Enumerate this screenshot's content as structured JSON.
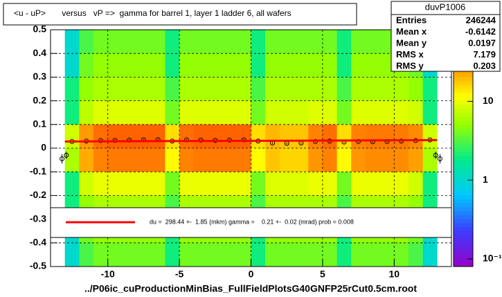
{
  "chart_data": {
    "type": "heatmap",
    "title": "<u - uP>       versus   vP =>  gamma for barrel 1, layer 1 ladder 6, all wafers",
    "footer": "../P06ic_cuProductionMinBias_FullFieldPlotsG40GNFP25rCut0.5cm.root",
    "stats": {
      "name": "duvP1006",
      "rows": [
        {
          "label": "Entries",
          "value": 246244
        },
        {
          "label": "Mean x",
          "value": -0.6142
        },
        {
          "label": "Mean y",
          "value": 0.0197
        },
        {
          "label": "RMS x",
          "value": 7.179
        },
        {
          "label": "RMS y",
          "value": 0.203
        }
      ]
    },
    "fit_legend": "du =  298.44 +-  1.85 (mkm) gamma =    0.21 +-  0.02 (mrad) prob = 0.008",
    "xlim": [
      -14,
      14
    ],
    "ylim": [
      -0.5,
      0.5
    ],
    "xticks": [
      -10,
      -5,
      0,
      5,
      10
    ],
    "yticks": [
      -0.5,
      -0.4,
      -0.3,
      -0.2,
      -0.1,
      0,
      0.1,
      0.2,
      0.3,
      0.4,
      0.5
    ],
    "zlim": [
      0.08,
      81
    ],
    "zscale": "log",
    "zticks": [
      {
        "value": 0.1,
        "label": "10⁻¹"
      },
      1,
      10
    ],
    "grid": true,
    "x_bins": [
      -13,
      -12,
      -11,
      -10,
      -9,
      -8,
      -7,
      -6,
      -5,
      -4,
      -3,
      -2,
      -1,
      0,
      1,
      2,
      3,
      4,
      5,
      6,
      7,
      8,
      9,
      10,
      11,
      12,
      13
    ],
    "y_bins": [
      0.5,
      0.4,
      0.3,
      0.2,
      0.1,
      0,
      -0.1,
      -0.2,
      -0.3,
      -0.4,
      -0.5
    ],
    "z": [
      [
        1,
        3,
        4,
        4,
        4,
        4,
        4,
        2,
        4,
        4,
        4,
        4,
        4,
        2,
        4,
        4,
        4,
        4,
        4,
        2,
        4,
        4,
        4,
        4,
        3,
        1
      ],
      [
        1,
        4,
        5,
        5,
        5,
        5,
        5,
        2,
        5,
        5,
        5,
        5,
        5,
        2,
        5,
        5,
        5,
        5,
        5,
        2,
        5,
        5,
        5,
        5,
        4,
        1
      ],
      [
        2,
        5,
        6,
        6,
        6,
        6,
        6,
        3,
        6,
        6,
        6,
        6,
        6,
        3,
        6,
        6,
        6,
        6,
        6,
        3,
        6,
        6,
        6,
        6,
        5,
        2
      ],
      [
        2,
        7,
        9,
        9,
        9,
        9,
        9,
        4,
        9,
        9,
        9,
        9,
        9,
        4,
        8,
        8,
        8,
        9,
        9,
        4,
        9,
        9,
        9,
        9,
        8,
        2
      ],
      [
        8,
        25,
        35,
        38,
        38,
        38,
        38,
        15,
        35,
        38,
        38,
        38,
        38,
        15,
        20,
        18,
        18,
        30,
        35,
        15,
        30,
        32,
        32,
        32,
        28,
        8
      ],
      [
        6,
        22,
        30,
        32,
        32,
        32,
        32,
        12,
        30,
        32,
        32,
        32,
        32,
        12,
        18,
        16,
        16,
        26,
        30,
        12,
        26,
        28,
        28,
        28,
        24,
        6
      ],
      [
        2,
        8,
        10,
        10,
        10,
        10,
        10,
        4,
        10,
        10,
        10,
        10,
        10,
        4,
        9,
        9,
        9,
        10,
        10,
        4,
        10,
        10,
        10,
        10,
        8,
        2
      ],
      [
        2,
        5,
        6,
        6,
        6,
        6,
        6,
        3,
        6,
        6,
        6,
        6,
        6,
        3,
        6,
        6,
        6,
        6,
        6,
        3,
        6,
        6,
        6,
        6,
        5,
        2
      ],
      [
        1,
        4,
        5,
        5,
        5,
        5,
        5,
        2,
        5,
        5,
        5,
        5,
        5,
        2,
        5,
        5,
        5,
        5,
        5,
        2,
        5,
        5,
        5,
        5,
        4,
        1
      ],
      [
        1,
        3,
        4,
        4,
        4,
        4,
        4,
        2,
        4,
        4,
        4,
        4,
        4,
        2,
        4,
        4,
        4,
        4,
        4,
        2,
        4,
        4,
        4,
        4,
        3,
        1
      ]
    ],
    "profile": {
      "x": [
        -13.2,
        -12.9,
        -12.5,
        -11.5,
        -10.5,
        -9.5,
        -8.5,
        -7.5,
        -6.5,
        -5.5,
        -4.5,
        -3.5,
        -2.5,
        -1.5,
        -0.5,
        0.5,
        1.5,
        2.5,
        3.5,
        4.5,
        5.5,
        6.5,
        7.5,
        8.5,
        9.5,
        10.5,
        11.5,
        12.5,
        12.9,
        13.2
      ],
      "values": [
        -0.045,
        -0.03,
        0.028,
        0.03,
        0.032,
        0.033,
        0.034,
        0.035,
        0.036,
        0.03,
        0.035,
        0.034,
        0.033,
        0.034,
        0.035,
        0.03,
        0.022,
        0.02,
        0.022,
        0.028,
        0.03,
        0.026,
        0.028,
        0.027,
        0.028,
        0.03,
        0.032,
        0.035,
        -0.03,
        -0.045
      ],
      "errors": [
        0.02,
        0.015,
        0.004,
        0.003,
        0.003,
        0.003,
        0.003,
        0.003,
        0.003,
        0.003,
        0.003,
        0.003,
        0.003,
        0.003,
        0.003,
        0.003,
        0.003,
        0.003,
        0.003,
        0.003,
        0.003,
        0.003,
        0.003,
        0.003,
        0.003,
        0.003,
        0.003,
        0.004,
        0.015,
        0.02
      ]
    },
    "fit": {
      "color": "#ff0000",
      "x": [
        -13,
        13
      ],
      "values": [
        0.028,
        0.034
      ]
    }
  }
}
